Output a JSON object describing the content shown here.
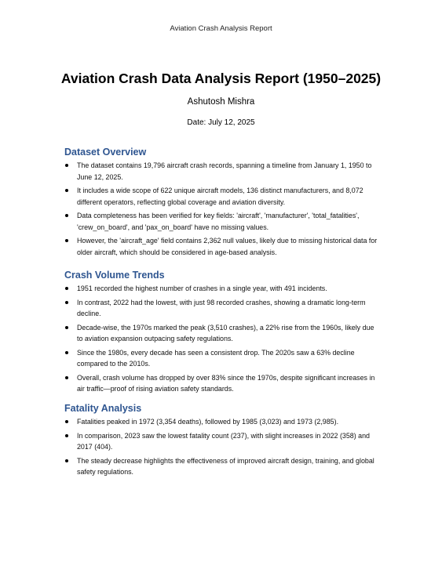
{
  "header": {
    "running_title": "Aviation Crash Analysis Report"
  },
  "title": "Aviation Crash Data Analysis Report (1950–2025)",
  "author": "Ashutosh Mishra",
  "date": "Date: July 12, 2025",
  "sections": [
    {
      "heading": "Dataset Overview",
      "bullets": [
        "The dataset contains 19,796 aircraft crash records, spanning a timeline from January 1, 1950 to June 12, 2025.",
        "It includes a wide scope of 622 unique aircraft models, 136 distinct manufacturers, and 8,072 different operators, reflecting global coverage and aviation diversity.",
        "Data completeness has been verified for key fields: 'aircraft', 'manufacturer', 'total_fatalities', 'crew_on_board', and 'pax_on_board' have no missing values.",
        "However, the 'aircraft_age' field contains 2,362 null values, likely due to missing historical data for older aircraft, which should be considered in age-based analysis."
      ]
    },
    {
      "heading": "Crash Volume Trends",
      "bullets": [
        "1951 recorded the highest number of crashes in a single year, with 491 incidents.",
        "In contrast, 2022 had the lowest, with just 98 recorded crashes, showing a dramatic long-term decline.",
        "Decade-wise, the 1970s marked the peak (3,510 crashes), a 22% rise from the 1960s, likely due to aviation expansion outpacing safety regulations.",
        "Since the 1980s, every decade has seen a consistent drop. The 2020s saw a 63% decline compared to the 2010s.",
        "Overall, crash volume has dropped by over 83% since the 1970s, despite significant increases in air traffic—proof of rising aviation safety standards."
      ]
    },
    {
      "heading": "Fatality Analysis",
      "bullets": [
        "Fatalities peaked in 1972 (3,354 deaths), followed by 1985 (3,023) and 1973 (2,985).",
        "In comparison, 2023 saw the lowest fatality count (237), with slight increases in 2022 (358) and 2017 (404).",
        "The steady decrease highlights the effectiveness of improved aircraft design, training, and global safety regulations."
      ]
    }
  ]
}
